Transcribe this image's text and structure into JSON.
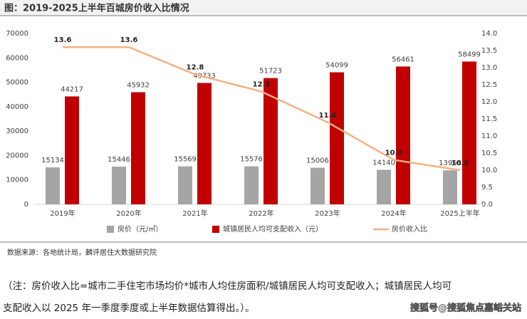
{
  "chart_data": {
    "type": "bar-line",
    "title": "图：2019-2025上半年百城房价收入比情况",
    "categories": [
      "2019年",
      "2020年",
      "2021年",
      "2022年",
      "2023年",
      "2024年",
      "2025上半年"
    ],
    "series": [
      {
        "name": "房价（元/㎡）",
        "color": "#a5a5a5",
        "type": "bar",
        "values": [
          15134,
          15446,
          15569,
          15576,
          15006,
          14140,
          13956
        ]
      },
      {
        "name": "城镇居民人均可支配收入（元）",
        "color": "#c00000",
        "type": "bar",
        "values": [
          44217,
          45932,
          49733,
          51723,
          54099,
          56461,
          58499
        ]
      },
      {
        "name": "房价收入比",
        "color": "#f4b183",
        "type": "line",
        "axis": "y2",
        "values": [
          13.6,
          13.6,
          12.8,
          12.3,
          11.4,
          10.3,
          10.0
        ],
        "value_labels": [
          "13.6",
          "13.6",
          "12.8",
          "12.3",
          "11.4",
          "10.3",
          "10.0"
        ]
      }
    ],
    "ylim": [
      0,
      70000
    ],
    "yticks": [
      0,
      10000,
      20000,
      30000,
      40000,
      50000,
      60000,
      70000
    ],
    "y2lim": [
      9.0,
      14.0
    ],
    "y2ticks": [
      {
        "value": 9.0,
        "label": "9.0"
      },
      9.5,
      {
        "value": 10.0,
        "label": "10.0"
      },
      10.5,
      {
        "value": 11.0,
        "label": "11.0"
      },
      11.5,
      {
        "value": 12.0,
        "label": "12.0"
      },
      12.5,
      {
        "value": 13.0,
        "label": "13.0"
      },
      13.5,
      {
        "value": 14.0,
        "label": "14.0"
      }
    ],
    "grid": false
  },
  "source": "数据来源：各地统计局，麟评居住大数据研究院",
  "note": [
    "（注：房价收入比=城市二手住宅市场均价*城市人均住房面积/城镇居民人均可支配收入；城镇居民人均可",
    "支配收入以 2025 年一季度季度或上半年数据估算得出。）。"
  ],
  "watermark": "搜狐号@搜狐焦点嘉峪关站"
}
